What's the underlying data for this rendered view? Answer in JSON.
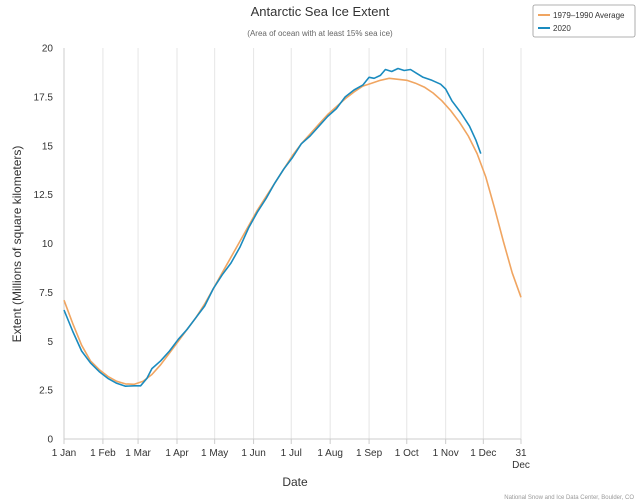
{
  "chart_data": {
    "type": "line",
    "title": "Antarctic Sea Ice Extent",
    "subtitle": "(Area of ocean with at least 15% sea ice)",
    "xlabel": "Date",
    "ylabel": "Extent (Millions of square kilometers)",
    "ylim": [
      0,
      20
    ],
    "yticks": [
      "0",
      "2.5",
      "5",
      "7.5",
      "10",
      "12.5",
      "15",
      "17.5",
      "20"
    ],
    "xlim": [
      "Jan 1",
      "Dec 31"
    ],
    "xticks": [
      {
        "date": "Jan 1",
        "label": "1 Jan"
      },
      {
        "date": "Feb 1",
        "label": "1 Feb"
      },
      {
        "date": "Mar 1",
        "label": "1 Mar"
      },
      {
        "date": "Apr 1",
        "label": "1 Apr"
      },
      {
        "date": "May 1",
        "label": "1 May"
      },
      {
        "date": "Jun 1",
        "label": "1 Jun"
      },
      {
        "date": "Jul 1",
        "label": "1 Jul"
      },
      {
        "date": "Aug 1",
        "label": "1 Aug"
      },
      {
        "date": "Sep 1",
        "label": "1 Sep"
      },
      {
        "date": "Oct 1",
        "label": "1 Oct"
      },
      {
        "date": "Nov 1",
        "label": "1 Nov"
      },
      {
        "date": "Dec 1",
        "label": "1 Dec"
      },
      {
        "date": "Dec 31",
        "label": "31",
        "label2": "Dec"
      }
    ],
    "grid": "vertical",
    "legend_position": "top-right",
    "series": [
      {
        "name": "1979–1990 Average",
        "color": "#f0a561",
        "points": [
          [
            "Jan 1",
            7.1
          ],
          [
            "Jan 8",
            5.9
          ],
          [
            "Jan 15",
            4.8
          ],
          [
            "Jan 22",
            4.0
          ],
          [
            "Jan 29",
            3.55
          ],
          [
            "Feb 5",
            3.2
          ],
          [
            "Feb 12",
            2.95
          ],
          [
            "Feb 19",
            2.82
          ],
          [
            "Feb 26",
            2.8
          ],
          [
            "Mar 5",
            2.95
          ],
          [
            "Mar 12",
            3.3
          ],
          [
            "Mar 19",
            3.8
          ],
          [
            "Mar 26",
            4.4
          ],
          [
            "Apr 2",
            5.0
          ],
          [
            "Apr 9",
            5.6
          ],
          [
            "Apr 16",
            6.2
          ],
          [
            "Apr 23",
            6.9
          ],
          [
            "Apr 30",
            7.7
          ],
          [
            "May 7",
            8.5
          ],
          [
            "May 14",
            9.3
          ],
          [
            "May 21",
            10.1
          ],
          [
            "May 28",
            10.9
          ],
          [
            "Jun 4",
            11.7
          ],
          [
            "Jun 11",
            12.4
          ],
          [
            "Jun 18",
            13.1
          ],
          [
            "Jun 25",
            13.8
          ],
          [
            "Jul 2",
            14.5
          ],
          [
            "Jul 9",
            15.1
          ],
          [
            "Jul 16",
            15.6
          ],
          [
            "Jul 23",
            16.1
          ],
          [
            "Jul 30",
            16.6
          ],
          [
            "Aug 6",
            17.0
          ],
          [
            "Aug 13",
            17.4
          ],
          [
            "Aug 20",
            17.75
          ],
          [
            "Aug 27",
            18.05
          ],
          [
            "Sep 3",
            18.2
          ],
          [
            "Sep 10",
            18.35
          ],
          [
            "Sep 17",
            18.45
          ],
          [
            "Sep 24",
            18.4
          ],
          [
            "Oct 1",
            18.35
          ],
          [
            "Oct 8",
            18.2
          ],
          [
            "Oct 15",
            18.0
          ],
          [
            "Oct 22",
            17.7
          ],
          [
            "Oct 29",
            17.3
          ],
          [
            "Nov 5",
            16.8
          ],
          [
            "Nov 12",
            16.2
          ],
          [
            "Nov 19",
            15.5
          ],
          [
            "Nov 26",
            14.6
          ],
          [
            "Dec 3",
            13.4
          ],
          [
            "Dec 10",
            11.8
          ],
          [
            "Dec 17",
            10.1
          ],
          [
            "Dec 24",
            8.5
          ],
          [
            "Dec 31",
            7.25
          ]
        ]
      },
      {
        "name": "2020",
        "color": "#1a8bbf",
        "points": [
          [
            "Jan 1",
            6.6
          ],
          [
            "Jan 8",
            5.5
          ],
          [
            "Jan 15",
            4.5
          ],
          [
            "Jan 22",
            3.9
          ],
          [
            "Jan 29",
            3.45
          ],
          [
            "Feb 5",
            3.1
          ],
          [
            "Feb 12",
            2.85
          ],
          [
            "Feb 19",
            2.7
          ],
          [
            "Feb 26",
            2.72
          ],
          [
            "Mar 3",
            2.72
          ],
          [
            "Mar 8",
            3.1
          ],
          [
            "Mar 12",
            3.6
          ],
          [
            "Mar 19",
            4.0
          ],
          [
            "Mar 26",
            4.5
          ],
          [
            "Apr 2",
            5.1
          ],
          [
            "Apr 9",
            5.6
          ],
          [
            "Apr 16",
            6.2
          ],
          [
            "Apr 23",
            6.8
          ],
          [
            "Apr 30",
            7.7
          ],
          [
            "May 7",
            8.4
          ],
          [
            "May 14",
            9.0
          ],
          [
            "May 21",
            9.8
          ],
          [
            "May 28",
            10.8
          ],
          [
            "Jun 4",
            11.6
          ],
          [
            "Jun 11",
            12.3
          ],
          [
            "Jun 18",
            13.1
          ],
          [
            "Jun 25",
            13.8
          ],
          [
            "Jul 2",
            14.4
          ],
          [
            "Jul 9",
            15.1
          ],
          [
            "Jul 16",
            15.5
          ],
          [
            "Jul 23",
            16.0
          ],
          [
            "Jul 30",
            16.5
          ],
          [
            "Aug 6",
            16.9
          ],
          [
            "Aug 13",
            17.5
          ],
          [
            "Aug 20",
            17.85
          ],
          [
            "Aug 27",
            18.1
          ],
          [
            "Sep 1",
            18.5
          ],
          [
            "Sep 5",
            18.45
          ],
          [
            "Sep 10",
            18.6
          ],
          [
            "Sep 14",
            18.9
          ],
          [
            "Sep 19",
            18.8
          ],
          [
            "Sep 24",
            18.95
          ],
          [
            "Sep 29",
            18.85
          ],
          [
            "Oct 4",
            18.9
          ],
          [
            "Oct 9",
            18.7
          ],
          [
            "Oct 14",
            18.5
          ],
          [
            "Oct 21",
            18.35
          ],
          [
            "Oct 28",
            18.15
          ],
          [
            "Nov 1",
            17.9
          ],
          [
            "Nov 6",
            17.3
          ],
          [
            "Nov 13",
            16.7
          ],
          [
            "Nov 20",
            16.0
          ],
          [
            "Nov 25",
            15.3
          ],
          [
            "Nov 29",
            14.6
          ]
        ]
      }
    ],
    "credit": "National Snow and Ice Data Center, Boulder, CO"
  }
}
